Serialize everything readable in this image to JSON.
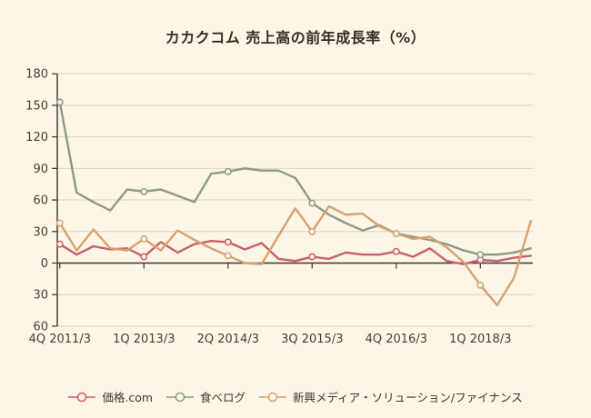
{
  "page": {
    "title": "カカクコム 売上高の前年成長率（%）"
  },
  "chart_data": {
    "type": "line",
    "title": "カカクコム 売上高の前年成長率（%）",
    "categories": [
      "4Q 2011/3",
      "1Q 2012/3",
      "2Q 2012/3",
      "3Q 2012/3",
      "4Q 2012/3",
      "1Q 2013/3",
      "2Q 2013/3",
      "3Q 2013/3",
      "4Q 2013/3",
      "1Q 2014/3",
      "2Q 2014/3",
      "3Q 2014/3",
      "4Q 2014/3",
      "1Q 2015/3",
      "2Q 2015/3",
      "3Q 2015/3",
      "4Q 2015/3",
      "1Q 2016/3",
      "2Q 2016/3",
      "3Q 2016/3",
      "4Q 2016/3",
      "1Q 2017/3",
      "2Q 2017/3",
      "3Q 2017/3",
      "4Q 2017/3",
      "1Q 2018/3",
      "2Q 2018/3",
      "3Q 2018/3",
      "4Q 2018/3"
    ],
    "x_tick_indices": [
      0,
      5,
      10,
      15,
      20,
      25
    ],
    "x_tick_labels": [
      "4Q 2011/3",
      "1Q 2013/3",
      "2Q 2014/3",
      "3Q 2015/3",
      "4Q 2016/3",
      "1Q 2018/3"
    ],
    "y_axis": {
      "min": -60,
      "max": 180,
      "step": 30,
      "labels_absolute": true,
      "tick_labels": [
        "180",
        "150",
        "120",
        "90",
        "60",
        "30",
        "0",
        "30",
        "60"
      ]
    },
    "grid": true,
    "legend_position": "bottom",
    "marker_every": 5,
    "series": [
      {
        "name": "価格.com",
        "color": "#cc5f6a",
        "values": [
          18,
          8,
          16,
          13,
          14,
          6,
          20,
          10,
          18,
          21,
          20,
          13,
          19,
          4,
          2,
          6,
          4,
          10,
          8,
          8,
          11,
          6,
          14,
          2,
          -1,
          3,
          2,
          5,
          7
        ]
      },
      {
        "name": "食べログ",
        "color": "#8e9a89",
        "values": [
          153,
          67,
          58,
          50,
          70,
          68,
          70,
          64,
          58,
          85,
          87,
          90,
          88,
          88,
          81,
          57,
          46,
          38,
          31,
          36,
          28,
          25,
          22,
          18,
          12,
          8,
          8,
          10,
          14
        ]
      },
      {
        "name": "新興メディア・ソリューション/ファイナンス",
        "color": "#d6a272",
        "values": [
          38,
          12,
          32,
          14,
          12,
          23,
          12,
          31,
          22,
          14,
          7,
          0,
          -1,
          26,
          52,
          30,
          54,
          46,
          47,
          35,
          28,
          23,
          25,
          15,
          1,
          -21,
          -40,
          -14,
          40
        ]
      }
    ],
    "colors": {
      "background": "#fdf5e6",
      "grid": "#d9d1c2",
      "axis": "#3b352b",
      "text": "#45403a"
    }
  }
}
